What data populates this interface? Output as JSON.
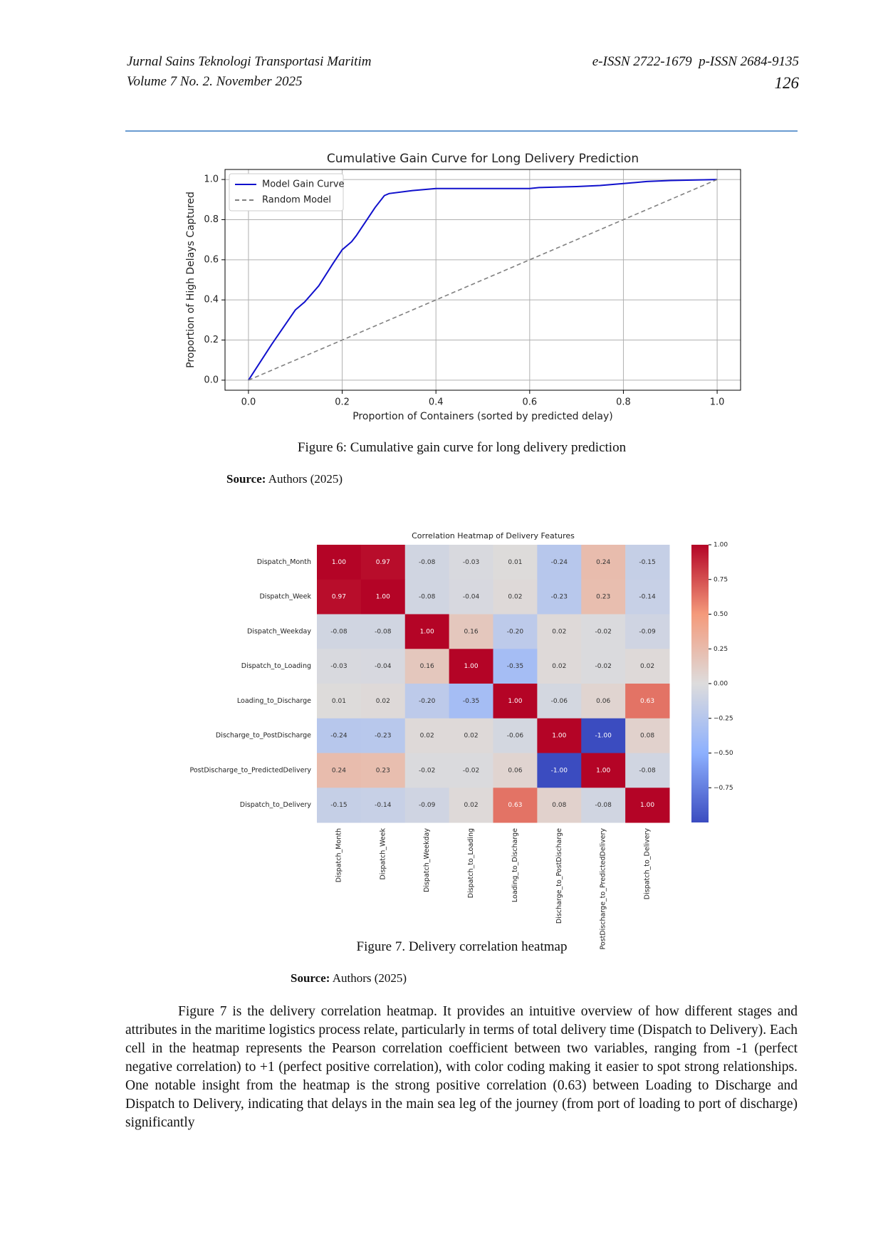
{
  "header": {
    "journal": "Jurnal Sains Teknologi Transportasi Maritim",
    "volume": "Volume 7 No. 2. November 2025",
    "issn": "e-ISSN 2722-1679  p-ISSN 2684-9135",
    "page": "126"
  },
  "chart_data": [
    {
      "type": "line",
      "title": "Cumulative Gain Curve for Long Delivery Prediction",
      "x_label": "Proportion of Containers (sorted by predicted delay)",
      "y_label": "Proportion of High Delays Captured",
      "xlim": [
        -0.05,
        1.05
      ],
      "ylim": [
        -0.05,
        1.05
      ],
      "xticks": [
        {
          "value": 0,
          "label": "0.0"
        },
        0.2,
        0.4,
        0.6,
        0.8,
        {
          "value": 1,
          "label": "1.0"
        }
      ],
      "yticks": [
        {
          "value": 0,
          "label": "0.0"
        },
        0.2,
        0.4,
        0.6,
        0.8,
        {
          "value": 1,
          "label": "1.0"
        }
      ],
      "grid": true,
      "legend": "upper left",
      "series": [
        {
          "name": "Model Gain Curve",
          "color": "#1010cc",
          "style": "solid",
          "x": [
            0,
            0.05,
            0.1,
            0.12,
            0.15,
            0.18,
            0.2,
            0.22,
            0.23,
            0.25,
            0.27,
            0.29,
            0.3,
            0.35,
            0.4,
            0.6,
            0.62,
            0.7,
            0.75,
            0.8,
            0.85,
            0.9,
            1.0
          ],
          "values": [
            0,
            0.18,
            0.35,
            0.39,
            0.47,
            0.58,
            0.65,
            0.69,
            0.72,
            0.79,
            0.86,
            0.92,
            0.93,
            0.945,
            0.955,
            0.955,
            0.96,
            0.965,
            0.97,
            0.98,
            0.99,
            0.995,
            1.0
          ]
        },
        {
          "name": "Random Model",
          "color": "#808080",
          "style": "dashed",
          "x": [
            0,
            1
          ],
          "values": [
            0,
            1
          ]
        }
      ]
    },
    {
      "type": "heatmap",
      "title": "Correlation Heatmap of Delivery Features",
      "categories": [
        "Dispatch_Month",
        "Dispatch_Week",
        "Dispatch_Weekday",
        "Dispatch_to_Loading",
        "Loading_to_Discharge",
        "Discharge_to_PostDischarge",
        "PostDischarge_to_PredictedDelivery",
        "Dispatch_to_Delivery"
      ],
      "values": [
        [
          1,
          0.97,
          -0.08,
          -0.03,
          0.01,
          -0.24,
          0.24,
          -0.15
        ],
        [
          0.97,
          1,
          -0.08,
          -0.04,
          0.02,
          -0.23,
          0.23,
          -0.14
        ],
        [
          -0.08,
          -0.08,
          1,
          0.16,
          -0.2,
          0.02,
          -0.02,
          -0.09
        ],
        [
          -0.03,
          -0.04,
          0.16,
          1,
          -0.35,
          0.02,
          -0.02,
          0.02
        ],
        [
          0.01,
          0.02,
          -0.2,
          -0.35,
          1,
          -0.06,
          0.06,
          0.63
        ],
        [
          -0.24,
          -0.23,
          0.02,
          0.02,
          -0.06,
          1,
          -1,
          0.08
        ],
        [
          0.24,
          0.23,
          -0.02,
          -0.02,
          0.06,
          -1,
          1,
          -0.08
        ],
        [
          -0.15,
          -0.14,
          -0.09,
          0.02,
          0.63,
          0.08,
          -0.08,
          1
        ]
      ],
      "value_labels": [
        [
          "1.00",
          "0.97",
          "-0.08",
          "-0.03",
          "0.01",
          "-0.24",
          "0.24",
          "-0.15"
        ],
        [
          "0.97",
          "1.00",
          "-0.08",
          "-0.04",
          "0.02",
          "-0.23",
          "0.23",
          "-0.14"
        ],
        [
          "-0.08",
          "-0.08",
          "1.00",
          "0.16",
          "-0.20",
          "0.02",
          "-0.02",
          "-0.09"
        ],
        [
          "-0.03",
          "-0.04",
          "0.16",
          "1.00",
          "-0.35",
          "0.02",
          "-0.02",
          "0.02"
        ],
        [
          "0.01",
          "0.02",
          "-0.20",
          "-0.35",
          "1.00",
          "-0.06",
          "0.06",
          "0.63"
        ],
        [
          "-0.24",
          "-0.23",
          "0.02",
          "0.02",
          "-0.06",
          "1.00",
          "-1.00",
          "0.08"
        ],
        [
          "0.24",
          "0.23",
          "-0.02",
          "-0.02",
          "0.06",
          "-1.00",
          "1.00",
          "-0.08"
        ],
        [
          "-0.15",
          "-0.14",
          "-0.09",
          "0.02",
          "0.63",
          "0.08",
          "-0.08",
          "1.00"
        ]
      ],
      "colormap": "coolwarm",
      "clim": [
        -1,
        1
      ],
      "cticks": [
        {
          "value": 1,
          "label": "1.00"
        },
        0.75,
        {
          "value": 0.5,
          "label": "0.50"
        },
        0.25,
        {
          "value": 0,
          "label": "0.00"
        },
        {
          "value": -0.25,
          "label": "−0.25"
        },
        {
          "value": -0.5,
          "label": "−0.50"
        },
        {
          "value": -0.75,
          "label": "−0.75"
        }
      ]
    }
  ],
  "figures": [
    {
      "caption": "Figure 6: Cumulative gain curve for long delivery prediction",
      "source_label": "Source:",
      "source": "Authors (2025)"
    },
    {
      "caption": "Figure 7. Delivery correlation heatmap",
      "source_label": "Source:",
      "source": "Authors (2025)"
    }
  ],
  "paragraph": "Figure 7 is the delivery correlation heatmap. It provides an intuitive overview of how different stages and attributes in the maritime logistics process relate, particularly in terms of total delivery time (Dispatch to Delivery). Each cell in the heatmap represents the Pearson correlation coefficient between two variables, ranging from -1 (perfect negative correlation) to +1 (perfect positive correlation), with color coding making it easier to spot strong relationships. One notable insight from the heatmap is the strong positive correlation (0.63) between Loading to Discharge and Dispatch to Delivery, indicating that delays in the main sea leg of the journey (from port of loading to port of discharge) significantly"
}
